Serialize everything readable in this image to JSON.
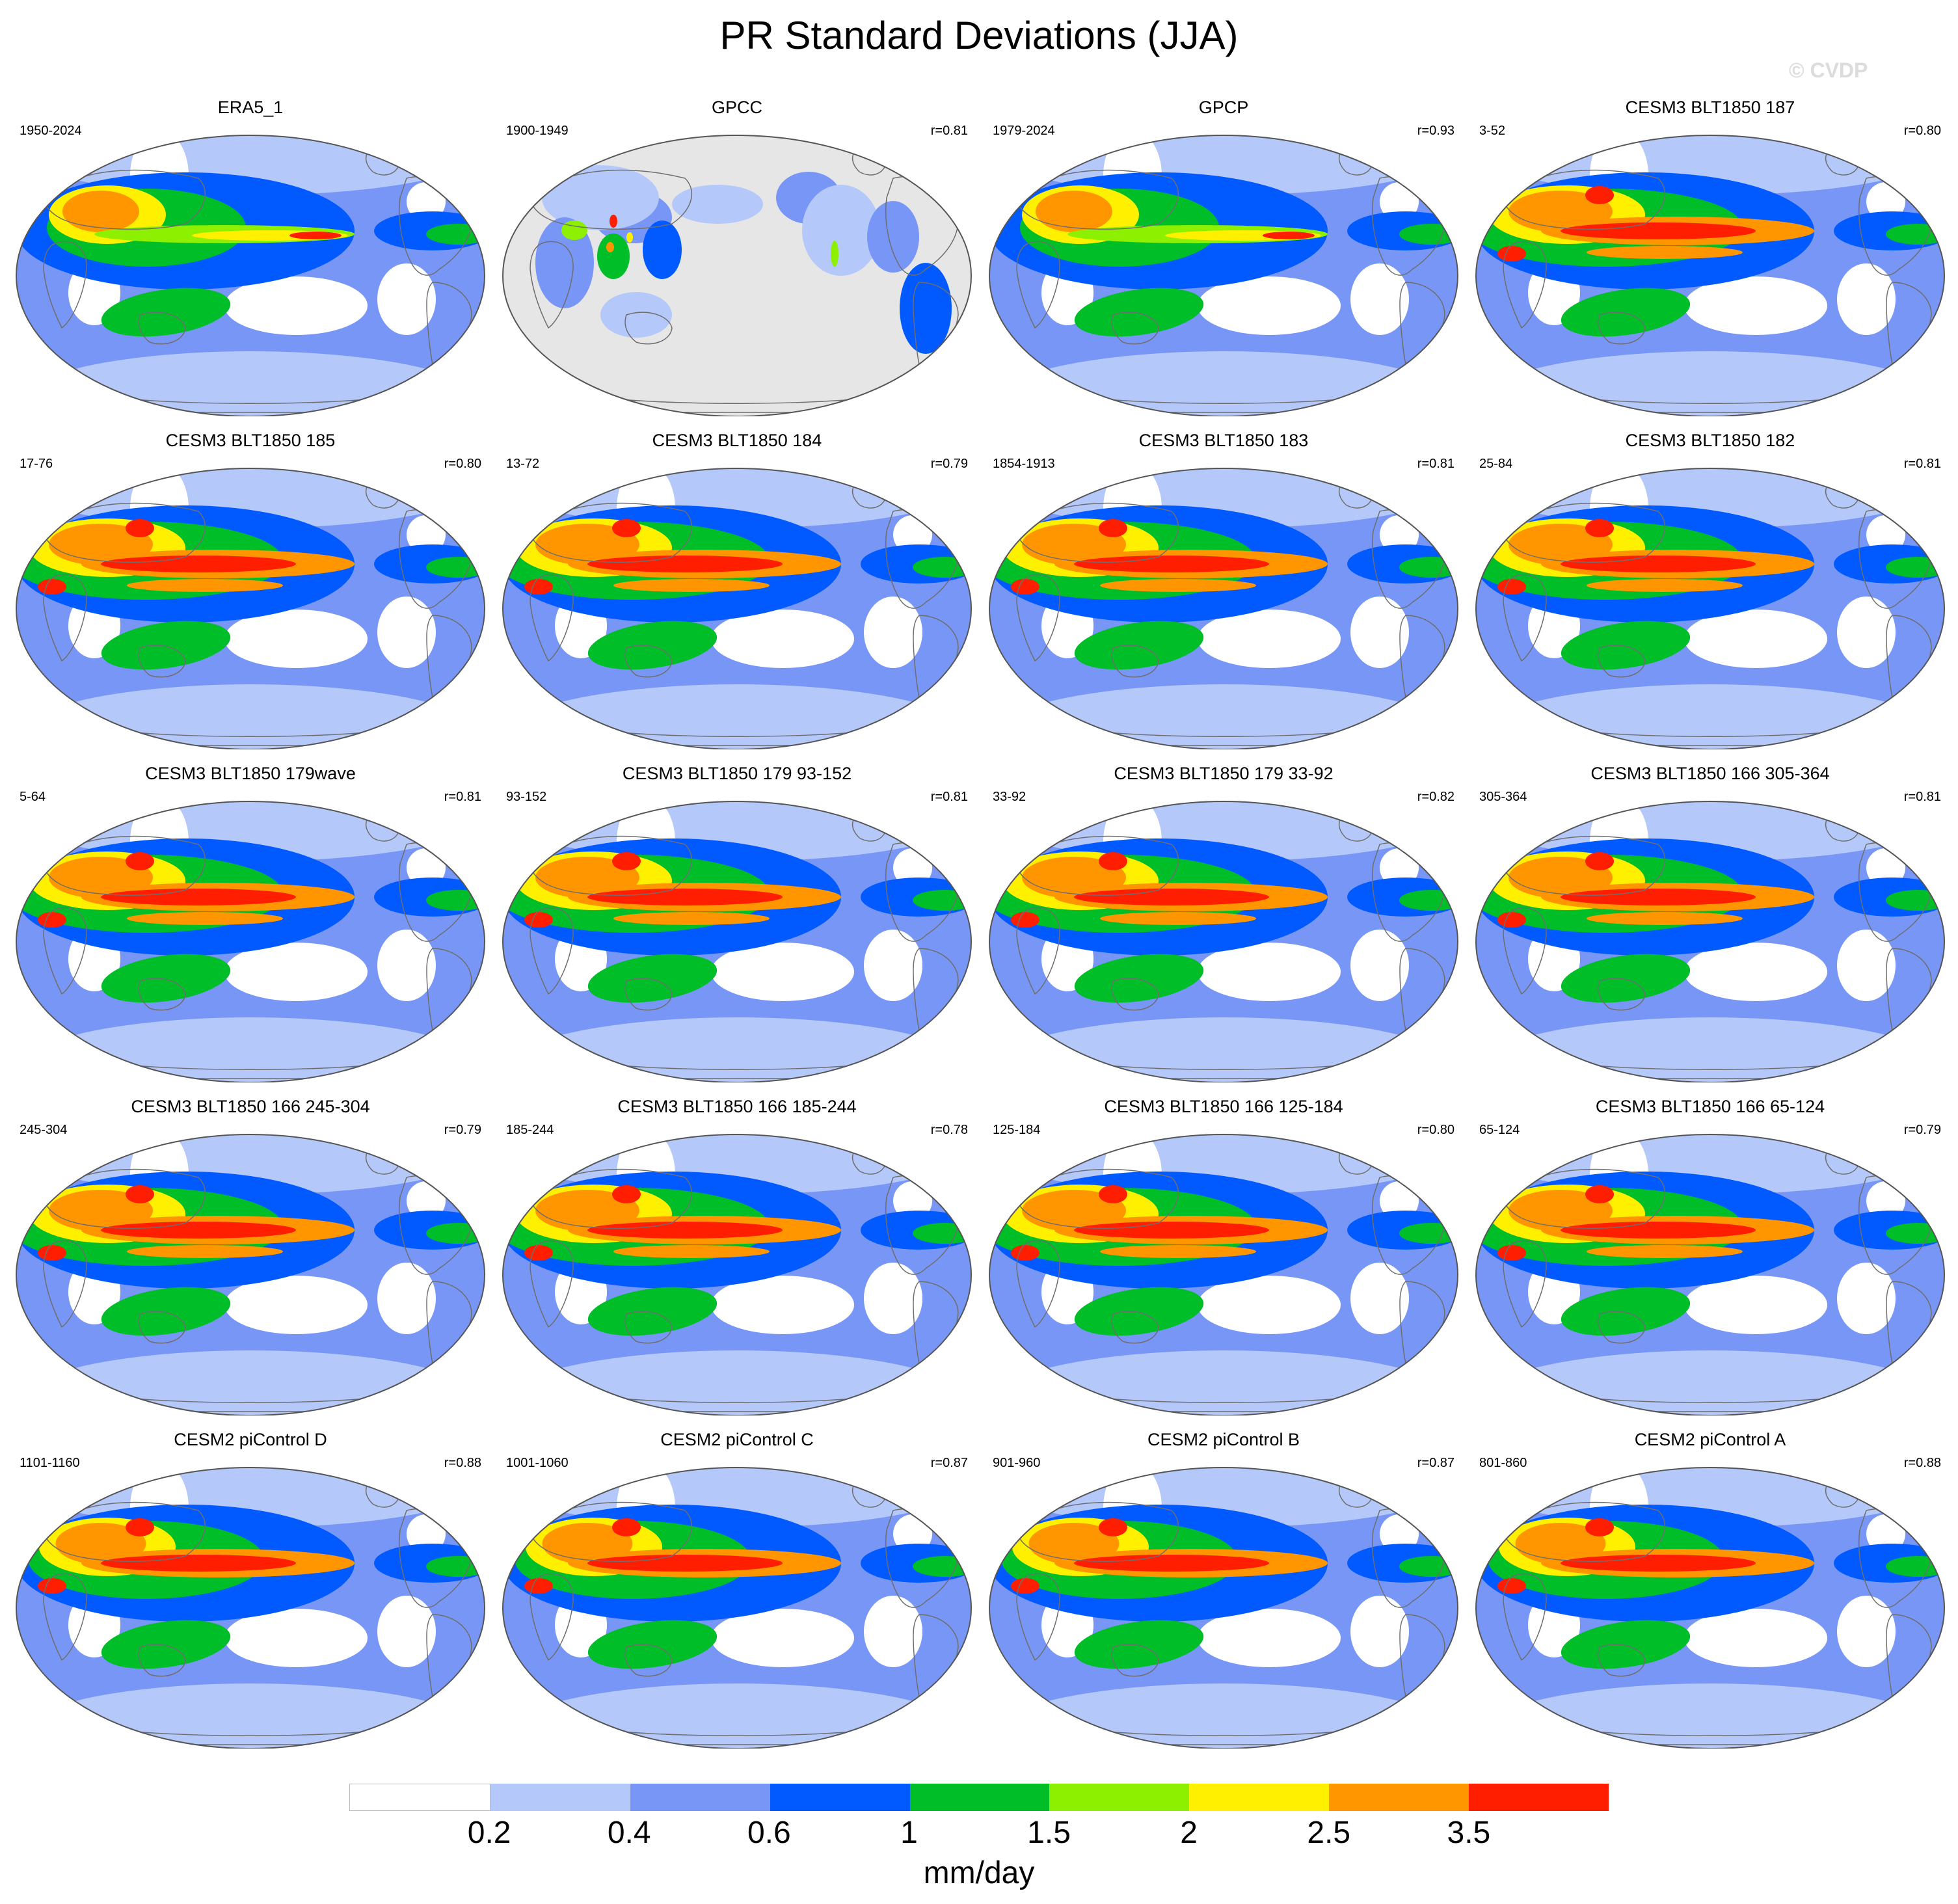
{
  "title": "PR Standard Deviations (JJA)",
  "watermark": "© CVDP",
  "panels": [
    {
      "title": "ERA5_1",
      "years": "1950-2024",
      "r": "",
      "style": "obs"
    },
    {
      "title": "GPCC",
      "years": "1900-1949",
      "r": "r=0.81",
      "style": "land"
    },
    {
      "title": "GPCP",
      "years": "1979-2024",
      "r": "r=0.93",
      "style": "obs"
    },
    {
      "title": "CESM3 BLT1850 187",
      "years": "3-52",
      "r": "r=0.80",
      "style": "model3"
    },
    {
      "title": "CESM3 BLT1850 185",
      "years": "17-76",
      "r": "r=0.80",
      "style": "model3"
    },
    {
      "title": "CESM3 BLT1850 184",
      "years": "13-72",
      "r": "r=0.79",
      "style": "model3"
    },
    {
      "title": "CESM3 BLT1850 183",
      "years": "1854-1913",
      "r": "r=0.81",
      "style": "model3"
    },
    {
      "title": "CESM3 BLT1850 182",
      "years": "25-84",
      "r": "r=0.81",
      "style": "model3"
    },
    {
      "title": "CESM3 BLT1850 179wave",
      "years": "5-64",
      "r": "r=0.81",
      "style": "model3"
    },
    {
      "title": "CESM3 BLT1850 179 93-152",
      "years": "93-152",
      "r": "r=0.81",
      "style": "model3"
    },
    {
      "title": "CESM3 BLT1850 179 33-92",
      "years": "33-92",
      "r": "r=0.82",
      "style": "model3"
    },
    {
      "title": "CESM3 BLT1850 166 305-364",
      "years": "305-364",
      "r": "r=0.81",
      "style": "model3"
    },
    {
      "title": "CESM3 BLT1850 166 245-304",
      "years": "245-304",
      "r": "r=0.79",
      "style": "model3"
    },
    {
      "title": "CESM3 BLT1850 166 185-244",
      "years": "185-244",
      "r": "r=0.78",
      "style": "model3"
    },
    {
      "title": "CESM3 BLT1850 166 125-184",
      "years": "125-184",
      "r": "r=0.80",
      "style": "model3"
    },
    {
      "title": "CESM3 BLT1850 166 65-124",
      "years": "65-124",
      "r": "r=0.79",
      "style": "model3"
    },
    {
      "title": "CESM2 piControl D",
      "years": "1101-1160",
      "r": "r=0.88",
      "style": "model2"
    },
    {
      "title": "CESM2 piControl C",
      "years": "1001-1060",
      "r": "r=0.87",
      "style": "model2"
    },
    {
      "title": "CESM2 piControl B",
      "years": "901-960",
      "r": "r=0.87",
      "style": "model2"
    },
    {
      "title": "CESM2 piControl A",
      "years": "801-860",
      "r": "r=0.88",
      "style": "model2"
    }
  ],
  "colorbar": {
    "colors": [
      "#ffffff",
      "#b4c8fa",
      "#7896f5",
      "#005aff",
      "#00be28",
      "#8cf000",
      "#fff000",
      "#ff9600",
      "#ff1e00"
    ],
    "labels": [
      "0.2",
      "0.4",
      "0.6",
      "1",
      "1.5",
      "2",
      "2.5",
      "3.5"
    ],
    "unit": "mm/day"
  },
  "map_colors": {
    "missing": "#e6e6e6",
    "coast": "#6e6e6e"
  }
}
